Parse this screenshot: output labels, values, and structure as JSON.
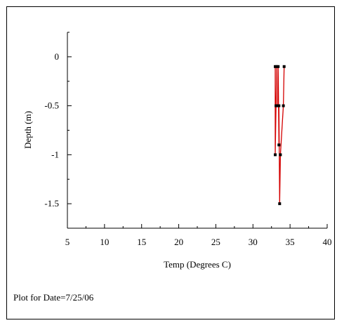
{
  "caption": {
    "prefix": "Plot for Date=",
    "date": "7/25/06"
  },
  "chart_data": {
    "type": "line",
    "xlabel": "Temp (Degrees C)",
    "ylabel": "Depth (m)",
    "xlim": [
      5,
      40
    ],
    "ylim": [
      -1.75,
      0.25
    ],
    "x_ticks": [
      5,
      10,
      15,
      20,
      25,
      30,
      35,
      40
    ],
    "y_ticks": [
      0,
      -0.5,
      -1,
      -1.5
    ],
    "x_tick_labels": [
      "5",
      "10",
      "15",
      "20",
      "25",
      "30",
      "35",
      "40"
    ],
    "y_tick_labels": [
      "0",
      "-0.5",
      "-1",
      "-1.5"
    ],
    "grid": false,
    "series": [
      {
        "color": "#d40000",
        "marker_color": "#000000",
        "points": [
          {
            "x": 33.0,
            "y": -0.1
          },
          {
            "x": 33.0,
            "y": -1.0
          },
          {
            "x": 33.2,
            "y": -0.1
          },
          {
            "x": 33.1,
            "y": -0.5
          },
          {
            "x": 33.3,
            "y": -0.5
          },
          {
            "x": 33.4,
            "y": -0.1
          },
          {
            "x": 33.5,
            "y": -0.9
          },
          {
            "x": 33.5,
            "y": -0.5
          },
          {
            "x": 33.6,
            "y": -1.5
          },
          {
            "x": 33.7,
            "y": -1.0
          },
          {
            "x": 34.1,
            "y": -0.5
          },
          {
            "x": 34.2,
            "y": -0.1
          }
        ],
        "path_order": [
          0,
          1,
          2,
          3,
          4,
          5,
          6,
          7,
          8,
          9,
          10,
          11
        ]
      }
    ]
  }
}
